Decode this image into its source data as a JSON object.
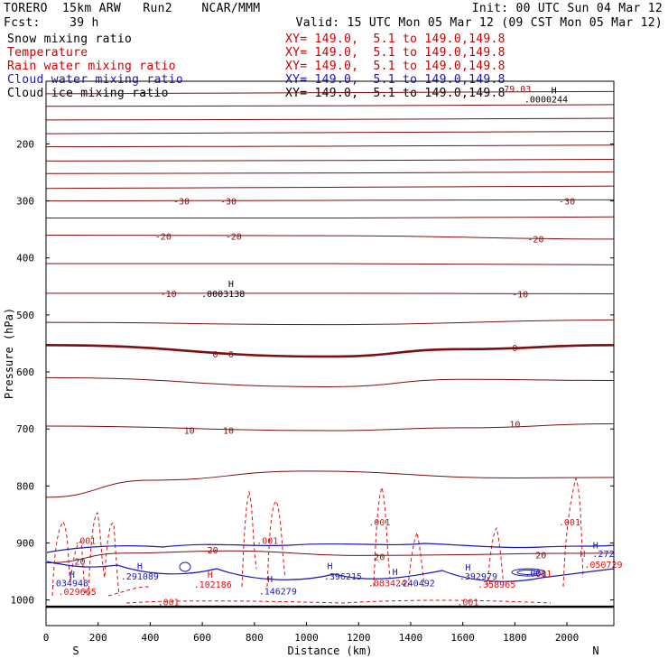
{
  "header": {
    "line1_left": "TORERO  15km ARW   Run2    NCAR/MMM",
    "line1_right": "Init: 00 UTC Sun 04 Mar 12",
    "line2_left": "Fcst:    39 h",
    "line2_right": "Valid: 15 UTC Mon 05 Mar 12 (09 CST Mon 05 Mar 12)"
  },
  "fields": [
    {
      "name": "Snow mixing ratio",
      "xy": "XY= 149.0,  5.1 to 149.0,149.8",
      "color": "#000000",
      "xy_color": "#cc0000"
    },
    {
      "name": "Temperature",
      "xy": "XY= 149.0,  5.1 to 149.0,149.8",
      "color": "#cc0000",
      "xy_color": "#cc0000"
    },
    {
      "name": "Rain water mixing ratio",
      "xy": "XY= 149.0,  5.1 to 149.0,149.8",
      "color": "#cc0000",
      "xy_color": "#cc0000"
    },
    {
      "name": "Cloud water mixing ratio",
      "xy": "XY= 149.0,  5.1 to 149.0,149.8",
      "color": "#1a1ab4",
      "xy_color": "#1a1ab4"
    },
    {
      "name": "Cloud ice mixing ratio",
      "xy": "XY= 149.0,  5.1 to 149.0,149.8",
      "color": "#000000",
      "xy_color": "#000000"
    }
  ],
  "colors": {
    "temperature": "#7a1010",
    "rain": "#dd1111",
    "cloud_water": "#1a1ab4",
    "ice": "#000000"
  },
  "chart_data": {
    "type": "line",
    "xlabel": "Distance (km)",
    "ylabel": "Pressure (hPa)",
    "xlim": [
      0,
      2180
    ],
    "ylim": [
      1045,
      90
    ],
    "x_ticks": [
      0,
      200,
      400,
      600,
      800,
      1000,
      1200,
      1400,
      1600,
      1800,
      2000
    ],
    "y_ticks": [
      200,
      300,
      400,
      500,
      600,
      700,
      800,
      900,
      1000
    ],
    "x_end_labels": {
      "left": "S",
      "right": "N"
    },
    "temperature_isotherms": [
      {
        "level": 100,
        "label": "",
        "points": [
          [
            0,
            112
          ],
          [
            1090,
            110
          ],
          [
            2180,
            108
          ]
        ]
      },
      {
        "level": 200,
        "label": "",
        "points": [
          [
            0,
            134
          ],
          [
            1090,
            133
          ],
          [
            2180,
            131
          ]
        ]
      },
      {
        "level": 300,
        "label": "",
        "points": [
          [
            0,
            158
          ],
          [
            1090,
            157
          ],
          [
            2180,
            155
          ]
        ]
      },
      {
        "level": 400,
        "label": "",
        "points": [
          [
            0,
            182
          ],
          [
            1090,
            180
          ],
          [
            2180,
            178
          ]
        ]
      },
      {
        "level": 500,
        "label": "",
        "points": [
          [
            0,
            205
          ],
          [
            1090,
            204
          ],
          [
            2180,
            202
          ]
        ]
      },
      {
        "level": 600,
        "label": "",
        "points": [
          [
            0,
            230
          ],
          [
            1090,
            229
          ],
          [
            2180,
            227
          ]
        ]
      },
      {
        "level": 700,
        "label": "",
        "points": [
          [
            0,
            252
          ],
          [
            1090,
            251
          ],
          [
            2180,
            249
          ]
        ]
      },
      {
        "level": 800,
        "label": "",
        "points": [
          [
            0,
            278
          ],
          [
            1090,
            276
          ],
          [
            2180,
            274
          ]
        ]
      },
      {
        "level": -30,
        "label": "-30",
        "points": [
          [
            0,
            300
          ],
          [
            1090,
            299
          ],
          [
            2180,
            298
          ]
        ]
      },
      {
        "level": -25,
        "label": "",
        "points": [
          [
            0,
            330
          ],
          [
            1090,
            330
          ],
          [
            2180,
            328
          ]
        ]
      },
      {
        "level": -20,
        "label": "-20",
        "points": [
          [
            0,
            360
          ],
          [
            1090,
            361
          ],
          [
            2180,
            367
          ]
        ]
      },
      {
        "level": -15,
        "label": "",
        "points": [
          [
            0,
            410
          ],
          [
            1090,
            410
          ],
          [
            2180,
            412
          ]
        ]
      },
      {
        "level": -10,
        "label": "-10",
        "points": [
          [
            0,
            462
          ],
          [
            1090,
            462
          ],
          [
            2180,
            463
          ]
        ]
      },
      {
        "level": -5,
        "label": "",
        "points": [
          [
            0,
            513
          ],
          [
            1090,
            517
          ],
          [
            2180,
            509
          ]
        ]
      },
      {
        "level": 0,
        "label": "0",
        "points": [
          [
            0,
            553
          ],
          [
            1090,
            573
          ],
          [
            1600,
            560
          ],
          [
            2180,
            553
          ]
        ]
      },
      {
        "level": 5,
        "label": "",
        "points": [
          [
            0,
            610
          ],
          [
            1090,
            626
          ],
          [
            1600,
            613
          ],
          [
            2180,
            615
          ]
        ]
      },
      {
        "level": 10,
        "label": "10",
        "points": [
          [
            0,
            695
          ],
          [
            1090,
            703
          ],
          [
            1600,
            698
          ],
          [
            2180,
            691
          ]
        ]
      },
      {
        "level": 15,
        "label": "",
        "points": [
          [
            0,
            820
          ],
          [
            400,
            790
          ],
          [
            1000,
            774
          ],
          [
            1800,
            786
          ],
          [
            2180,
            785
          ]
        ]
      },
      {
        "level": 20,
        "label": "20",
        "points": [
          [
            0,
            935
          ],
          [
            300,
            918
          ],
          [
            700,
            914
          ],
          [
            1200,
            922
          ],
          [
            2180,
            918
          ]
        ]
      }
    ],
    "labels": [
      {
        "text": "-30",
        "x": 520,
        "y": 300,
        "color": "#7a1010"
      },
      {
        "text": "-30",
        "x": 700,
        "y": 300,
        "color": "#7a1010"
      },
      {
        "text": "-30",
        "x": 2000,
        "y": 300,
        "color": "#7a1010"
      },
      {
        "text": "-20",
        "x": 450,
        "y": 362,
        "color": "#7a1010"
      },
      {
        "text": "-20",
        "x": 720,
        "y": 362,
        "color": "#7a1010"
      },
      {
        "text": "-20",
        "x": 1880,
        "y": 366,
        "color": "#7a1010"
      },
      {
        "text": "-10",
        "x": 470,
        "y": 462,
        "color": "#7a1010"
      },
      {
        "text": "-10",
        "x": 1820,
        "y": 463,
        "color": "#7a1010"
      },
      {
        "text": "0",
        "x": 650,
        "y": 568,
        "color": "#7a1010"
      },
      {
        "text": "0",
        "x": 710,
        "y": 568,
        "color": "#7a1010"
      },
      {
        "text": "0",
        "x": 1800,
        "y": 557,
        "color": "#7a1010"
      },
      {
        "text": "10",
        "x": 550,
        "y": 702,
        "color": "#7a1010"
      },
      {
        "text": "10",
        "x": 700,
        "y": 702,
        "color": "#7a1010"
      },
      {
        "text": "10",
        "x": 1800,
        "y": 691,
        "color": "#7a1010"
      },
      {
        "text": "20",
        "x": 130,
        "y": 932,
        "color": "#7a1010"
      },
      {
        "text": "20",
        "x": 640,
        "y": 912,
        "color": "#7a1010"
      },
      {
        "text": "20",
        "x": 1280,
        "y": 924,
        "color": "#7a1010"
      },
      {
        "text": "20",
        "x": 1900,
        "y": 921,
        "color": "#7a1010"
      },
      {
        "text": "H",
        "x": 710,
        "y": 445,
        "color": "#000000"
      },
      {
        "text": ".0003138",
        "x": 680,
        "y": 462,
        "color": "#000000"
      },
      {
        "text": "79.03",
        "x": 1810,
        "y": 103,
        "color": "#cc0000"
      },
      {
        "text": "H",
        "x": 1950,
        "y": 105,
        "color": "#000000"
      },
      {
        "text": ".0000244",
        "x": 1920,
        "y": 121,
        "color": "#000000"
      },
      {
        "text": ".001",
        "x": 150,
        "y": 895,
        "color": "#dd1111"
      },
      {
        "text": ".001",
        "x": 850,
        "y": 895,
        "color": "#dd1111"
      },
      {
        "text": ".001",
        "x": 1280,
        "y": 863,
        "color": "#dd1111"
      },
      {
        "text": ".001",
        "x": 2010,
        "y": 863,
        "color": "#dd1111"
      },
      {
        "text": ".001",
        "x": 1900,
        "y": 953,
        "color": "#dd1111"
      },
      {
        "text": ".001",
        "x": 470,
        "y": 1003,
        "color": "#dd1111"
      },
      {
        "text": ".001",
        "x": 1620,
        "y": 1003,
        "color": "#dd1111"
      },
      {
        "text": "H",
        "x": 100,
        "y": 955,
        "color": "#1a1ab4"
      },
      {
        "text": ".034948",
        "x": 90,
        "y": 970,
        "color": "#1a1ab4"
      },
      {
        "text": ".029665",
        "x": 120,
        "y": 985,
        "color": "#dd1111"
      },
      {
        "text": "H",
        "x": 360,
        "y": 940,
        "color": "#1a1ab4"
      },
      {
        "text": ".291089",
        "x": 360,
        "y": 958,
        "color": "#1a1ab4"
      },
      {
        "text": "H",
        "x": 630,
        "y": 955,
        "color": "#dd1111"
      },
      {
        "text": ".102186",
        "x": 640,
        "y": 972,
        "color": "#dd1111"
      },
      {
        "text": "H",
        "x": 860,
        "y": 963,
        "color": "#1a1ab4"
      },
      {
        "text": ".146279",
        "x": 890,
        "y": 984,
        "color": "#1a1ab4"
      },
      {
        "text": "H",
        "x": 1090,
        "y": 940,
        "color": "#1a1ab4"
      },
      {
        "text": ".396215",
        "x": 1140,
        "y": 958,
        "color": "#1a1ab4"
      },
      {
        "text": "H",
        "x": 1340,
        "y": 950,
        "color": "#1a1ab4"
      },
      {
        "text": ".083424",
        "x": 1310,
        "y": 970,
        "color": "#dd1111"
      },
      {
        "text": ".240492",
        "x": 1420,
        "y": 970,
        "color": "#1a1ab4"
      },
      {
        "text": "H",
        "x": 1620,
        "y": 942,
        "color": "#1a1ab4"
      },
      {
        "text": ".392979",
        "x": 1660,
        "y": 958,
        "color": "#1a1ab4"
      },
      {
        "text": ".358965",
        "x": 1730,
        "y": 972,
        "color": "#dd1111"
      },
      {
        "text": ".001",
        "x": 1880,
        "y": 952,
        "color": "#1a1ab4"
      },
      {
        "text": "H",
        "x": 2110,
        "y": 903,
        "color": "#1a1ab4"
      },
      {
        "text": "H",
        "x": 2060,
        "y": 918,
        "color": "#dd1111"
      },
      {
        "text": ".272",
        "x": 2140,
        "y": 918,
        "color": "#1a1ab4"
      },
      {
        "text": ".050729",
        "x": 2140,
        "y": 937,
        "color": "#dd1111"
      }
    ]
  }
}
